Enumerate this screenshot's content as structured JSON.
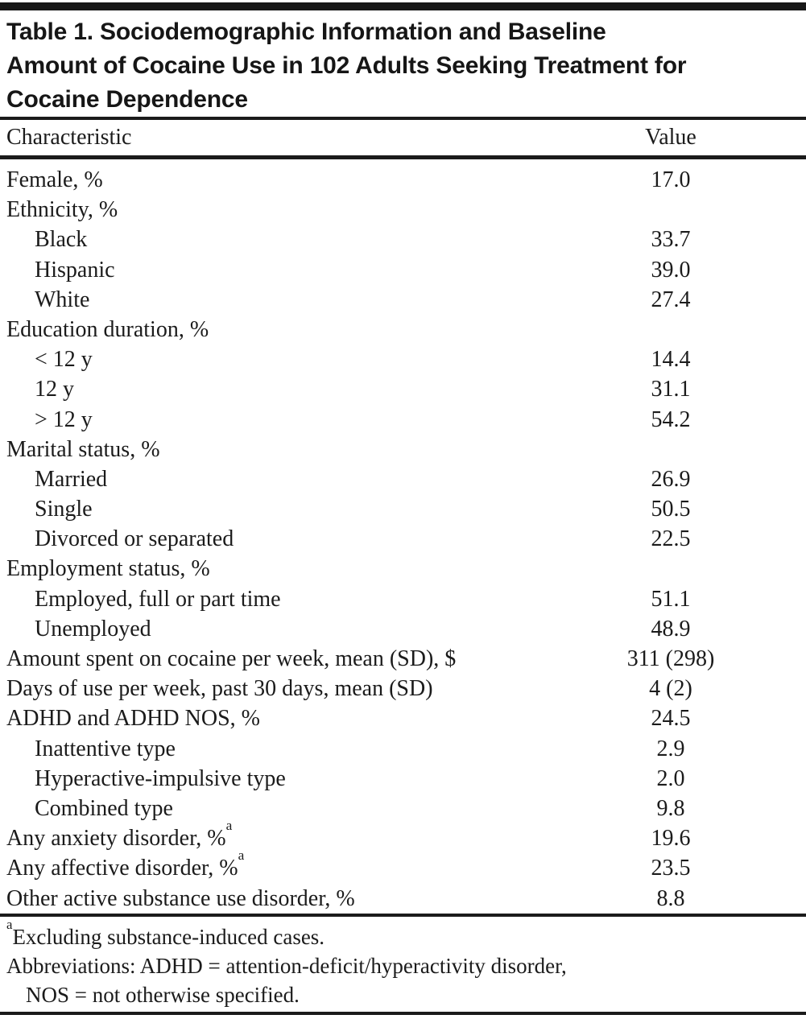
{
  "table": {
    "title_lines": [
      "Table 1. Sociodemographic Information and Baseline",
      "Amount of Cocaine Use in 102 Adults Seeking Treatment for",
      "Cocaine Dependence"
    ],
    "columns": {
      "characteristic": "Characteristic",
      "value": "Value"
    },
    "rows": [
      {
        "label": "Female, %",
        "value": "17.0",
        "indent": 0,
        "sup": ""
      },
      {
        "label": "Ethnicity, %",
        "value": "",
        "indent": 0,
        "sup": ""
      },
      {
        "label": "Black",
        "value": "33.7",
        "indent": 1,
        "sup": ""
      },
      {
        "label": "Hispanic",
        "value": "39.0",
        "indent": 1,
        "sup": ""
      },
      {
        "label": "White",
        "value": "27.4",
        "indent": 1,
        "sup": ""
      },
      {
        "label": "Education duration, %",
        "value": "",
        "indent": 0,
        "sup": ""
      },
      {
        "label": "< 12 y",
        "value": "14.4",
        "indent": 1,
        "sup": ""
      },
      {
        "label": "12 y",
        "value": "31.1",
        "indent": 1,
        "sup": ""
      },
      {
        "label": "> 12 y",
        "value": "54.2",
        "indent": 1,
        "sup": ""
      },
      {
        "label": "Marital status, %",
        "value": "",
        "indent": 0,
        "sup": ""
      },
      {
        "label": "Married",
        "value": "26.9",
        "indent": 1,
        "sup": ""
      },
      {
        "label": "Single",
        "value": "50.5",
        "indent": 1,
        "sup": ""
      },
      {
        "label": "Divorced or separated",
        "value": "22.5",
        "indent": 1,
        "sup": ""
      },
      {
        "label": "Employment status, %",
        "value": "",
        "indent": 0,
        "sup": ""
      },
      {
        "label": "Employed, full or part time",
        "value": "51.1",
        "indent": 1,
        "sup": ""
      },
      {
        "label": "Unemployed",
        "value": "48.9",
        "indent": 1,
        "sup": ""
      },
      {
        "label": "Amount spent on cocaine per week, mean (SD), $",
        "value": "311 (298)",
        "indent": 0,
        "sup": ""
      },
      {
        "label": "Days of use per week, past 30 days, mean (SD)",
        "value": "4 (2)",
        "indent": 0,
        "sup": ""
      },
      {
        "label": "ADHD and ADHD NOS, %",
        "value": "24.5",
        "indent": 0,
        "sup": ""
      },
      {
        "label": "Inattentive type",
        "value": "2.9",
        "indent": 1,
        "sup": ""
      },
      {
        "label": "Hyperactive-impulsive type",
        "value": "2.0",
        "indent": 1,
        "sup": ""
      },
      {
        "label": "Combined type",
        "value": "9.8",
        "indent": 1,
        "sup": ""
      },
      {
        "label": "Any anxiety disorder, %",
        "value": "19.6",
        "indent": 0,
        "sup": "a"
      },
      {
        "label": "Any affective disorder, %",
        "value": "23.5",
        "indent": 0,
        "sup": "a"
      },
      {
        "label": "Other active substance use disorder, %",
        "value": "8.8",
        "indent": 0,
        "sup": ""
      }
    ],
    "footnotes": {
      "note_a_marker": "a",
      "note_a_text": "Excluding substance-induced cases.",
      "abbrev_line1": "Abbreviations: ADHD = attention-deficit/hyperactivity disorder,",
      "abbrev_line2": "NOS = not otherwise specified."
    },
    "colors": {
      "text": "#1b1b1b",
      "rule": "#1b1b1b",
      "top_bar": "#181818",
      "background": "#ffffff"
    }
  }
}
